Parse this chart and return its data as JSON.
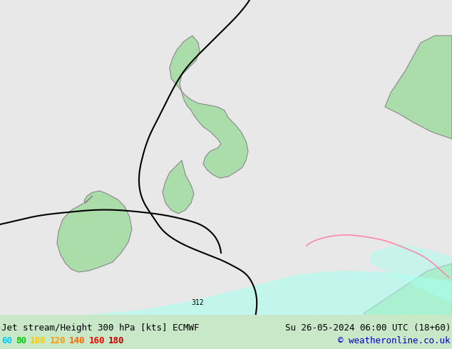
{
  "title_left": "Jet stream/Height 300 hPa [kts] ECMWF",
  "title_right": "Su 26-05-2024 06:00 UTC (18+60)",
  "copyright": "© weatheronline.co.uk",
  "legend_labels": [
    "60",
    "80",
    "100",
    "120",
    "140",
    "160",
    "180"
  ],
  "legend_colors": [
    "#00ccff",
    "#00cc00",
    "#ffcc00",
    "#ff9900",
    "#ff6600",
    "#ff0000",
    "#cc0000"
  ],
  "bg_color": "#e8e8e8",
  "land_color": "#aaddaa",
  "border_color": "#888888",
  "map_bg": "#e0e8e0",
  "bottom_bar_color": "#c8e8c8",
  "fig_width": 6.34,
  "fig_height": 4.9,
  "title_fontsize": 9,
  "legend_fontsize": 9,
  "copyright_fontsize": 9
}
